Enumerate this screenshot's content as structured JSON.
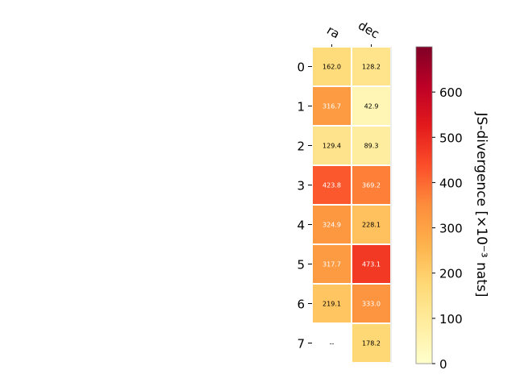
{
  "chart_data": {
    "type": "heatmap",
    "columns": [
      "ra",
      "dec"
    ],
    "rows": [
      "0",
      "1",
      "2",
      "3",
      "4",
      "5",
      "6",
      "7"
    ],
    "values": [
      [
        162.0,
        128.2
      ],
      [
        316.7,
        42.9
      ],
      [
        129.4,
        89.3
      ],
      [
        423.8,
        369.2
      ],
      [
        324.9,
        228.1
      ],
      [
        317.7,
        473.1
      ],
      [
        219.1,
        333.0
      ],
      [
        null,
        178.2
      ]
    ],
    "missing_label": "--",
    "colorbar": {
      "label": "JS-divergence [×10⁻³ nats]",
      "range": [
        0,
        700
      ],
      "ticks": [
        "0",
        "100",
        "200",
        "300",
        "400",
        "500",
        "600"
      ],
      "colormap": "YlOrRd"
    },
    "colors": {
      "cmap_stops": [
        "#ffffcc",
        "#ffeda0",
        "#fed976",
        "#feb24c",
        "#fd8d3c",
        "#fc4e2a",
        "#e31a1c",
        "#bd0026",
        "#800026"
      ]
    }
  }
}
